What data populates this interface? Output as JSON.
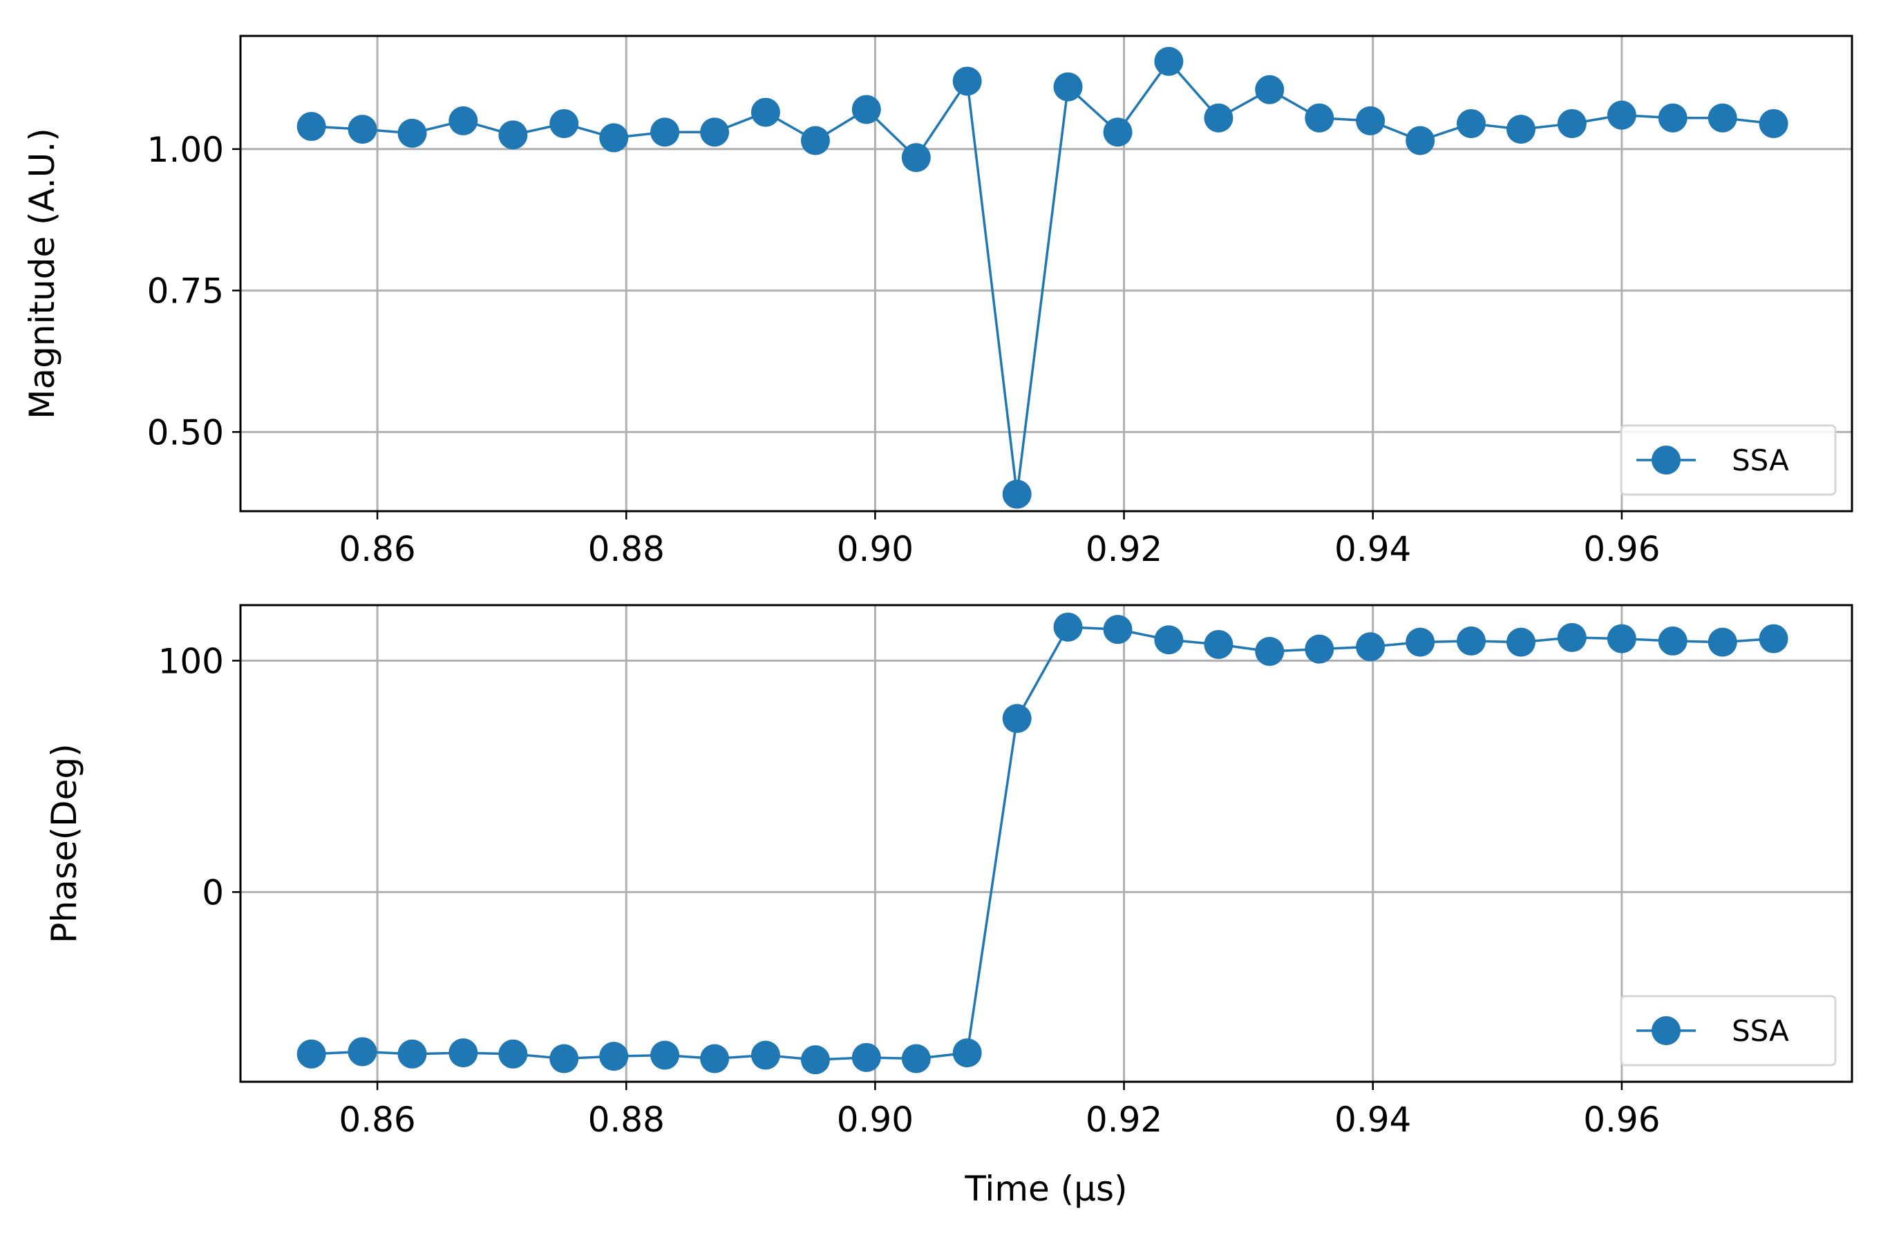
{
  "chart_data": [
    {
      "type": "line",
      "title": "",
      "xlabel": "",
      "ylabel": "Magnitude (A.U.)",
      "xlim": [
        0.849,
        0.9785
      ],
      "ylim": [
        0.36,
        1.2
      ],
      "xticks": [
        0.86,
        0.88,
        0.9,
        0.92,
        0.94,
        0.96
      ],
      "xtick_labels": [
        "0.86",
        "0.88",
        "0.90",
        "0.92",
        "0.94",
        "0.96"
      ],
      "yticks": [
        0.5,
        0.75,
        1.0
      ],
      "ytick_labels": [
        "0.50",
        "0.75",
        "1.00"
      ],
      "grid": true,
      "legend_position": "lower-right",
      "line_color": "#1f77b4",
      "series": [
        {
          "name": "SSA",
          "x": [
            0.8547,
            0.8588,
            0.8628,
            0.8669,
            0.8709,
            0.875,
            0.879,
            0.8831,
            0.8871,
            0.8912,
            0.8952,
            0.8993,
            0.9033,
            0.9074,
            0.9114,
            0.9155,
            0.9195,
            0.9236,
            0.9276,
            0.9317,
            0.9357,
            0.9398,
            0.9438,
            0.9479,
            0.9519,
            0.956,
            0.96,
            0.9641,
            0.9681,
            0.9722
          ],
          "y": [
            1.04,
            1.035,
            1.028,
            1.05,
            1.025,
            1.045,
            1.02,
            1.03,
            1.03,
            1.065,
            1.015,
            1.07,
            0.985,
            1.12,
            0.39,
            1.11,
            1.03,
            1.155,
            1.055,
            1.105,
            1.055,
            1.05,
            1.015,
            1.045,
            1.035,
            1.045,
            1.06,
            1.055,
            1.055,
            1.045
          ]
        }
      ]
    },
    {
      "type": "line",
      "title": "",
      "xlabel": "Time (μs)",
      "ylabel": "Phase(Deg)",
      "xlim": [
        0.849,
        0.9785
      ],
      "ylim": [
        -82,
        124
      ],
      "xticks": [
        0.86,
        0.88,
        0.9,
        0.92,
        0.94,
        0.96
      ],
      "xtick_labels": [
        "0.86",
        "0.88",
        "0.90",
        "0.92",
        "0.94",
        "0.96"
      ],
      "yticks": [
        0,
        100
      ],
      "ytick_labels": [
        "0",
        "100"
      ],
      "grid": true,
      "legend_position": "lower-right",
      "line_color": "#1f77b4",
      "series": [
        {
          "name": "SSA",
          "x": [
            0.8547,
            0.8588,
            0.8628,
            0.8669,
            0.8709,
            0.875,
            0.879,
            0.8831,
            0.8871,
            0.8912,
            0.8952,
            0.8993,
            0.9033,
            0.9074,
            0.9114,
            0.9155,
            0.9195,
            0.9236,
            0.9276,
            0.9317,
            0.9357,
            0.9398,
            0.9438,
            0.9479,
            0.9519,
            0.956,
            0.96,
            0.9641,
            0.9681,
            0.9722
          ],
          "y": [
            -70,
            -69,
            -70,
            -69.5,
            -70,
            -72,
            -71,
            -70.5,
            -72,
            -70.5,
            -72.5,
            -71.5,
            -72,
            -69.5,
            75,
            114.5,
            113.5,
            109,
            107,
            104,
            105,
            106,
            108,
            108.5,
            108,
            110,
            109.5,
            108.5,
            108,
            109.5
          ]
        }
      ]
    }
  ]
}
